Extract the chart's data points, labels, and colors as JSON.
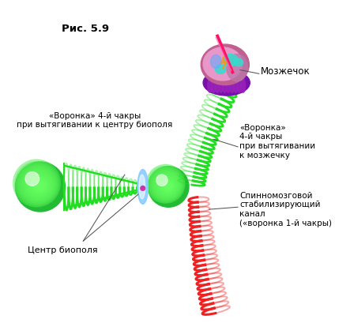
{
  "title": "Рис. 5.9",
  "bg_color": "#ffffff",
  "label_mozzhechok": "Мозжечок",
  "label_voronka_bio": "«Воронка» 4-й чакры\nпри вытягивании к центру биополя",
  "label_centr_bio": "Центр биополя",
  "label_voronka_moz": "«Воронка»\n4-й чакры\nпри вытягивании\nк мозжечку",
  "label_spinnoy": "Спинномозговой\nстабилизирующий\nканал\n(«воронка 1-й чакры)",
  "green_color": "#22dd22",
  "red_color": "#ee2222",
  "blue_color": "#55bbff",
  "ball_green": "#33cc44"
}
